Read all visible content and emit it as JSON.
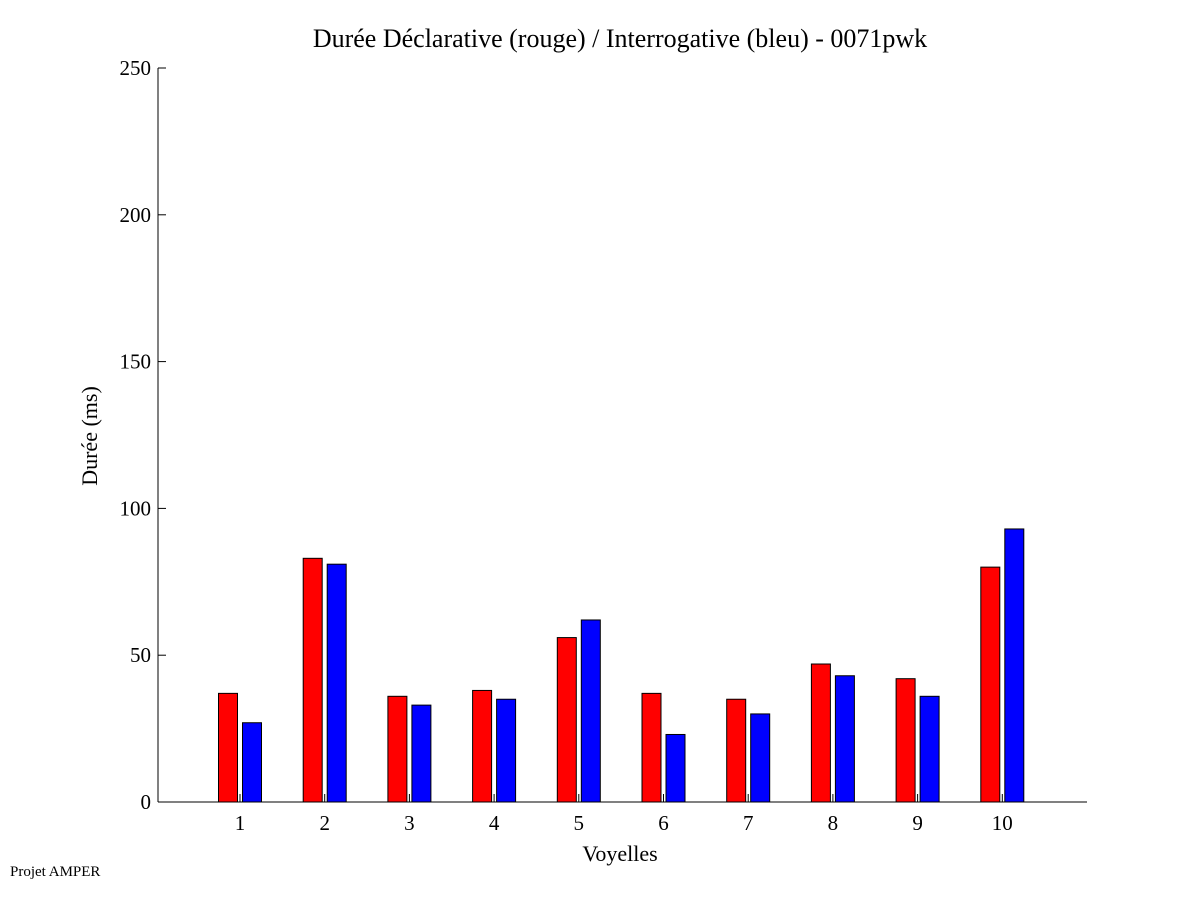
{
  "chart_data": {
    "type": "bar",
    "title": "Durée Déclarative (rouge) / Interrogative (bleu) - 0071pwk",
    "xlabel": "Voyelles",
    "ylabel": "Durée (ms)",
    "ylim": [
      0,
      250
    ],
    "yticks": [
      0,
      50,
      100,
      150,
      200,
      250
    ],
    "categories": [
      "1",
      "2",
      "3",
      "4",
      "5",
      "6",
      "7",
      "8",
      "9",
      "10"
    ],
    "grid": false,
    "series": [
      {
        "color": "#ff0000",
        "values": [
          37,
          83,
          36,
          38,
          56,
          37,
          35,
          47,
          42,
          80
        ]
      },
      {
        "color": "#0000ff",
        "values": [
          27,
          81,
          33,
          35,
          62,
          23,
          30,
          43,
          36,
          93
        ]
      }
    ]
  },
  "footer": {
    "text": "Projet AMPER"
  }
}
